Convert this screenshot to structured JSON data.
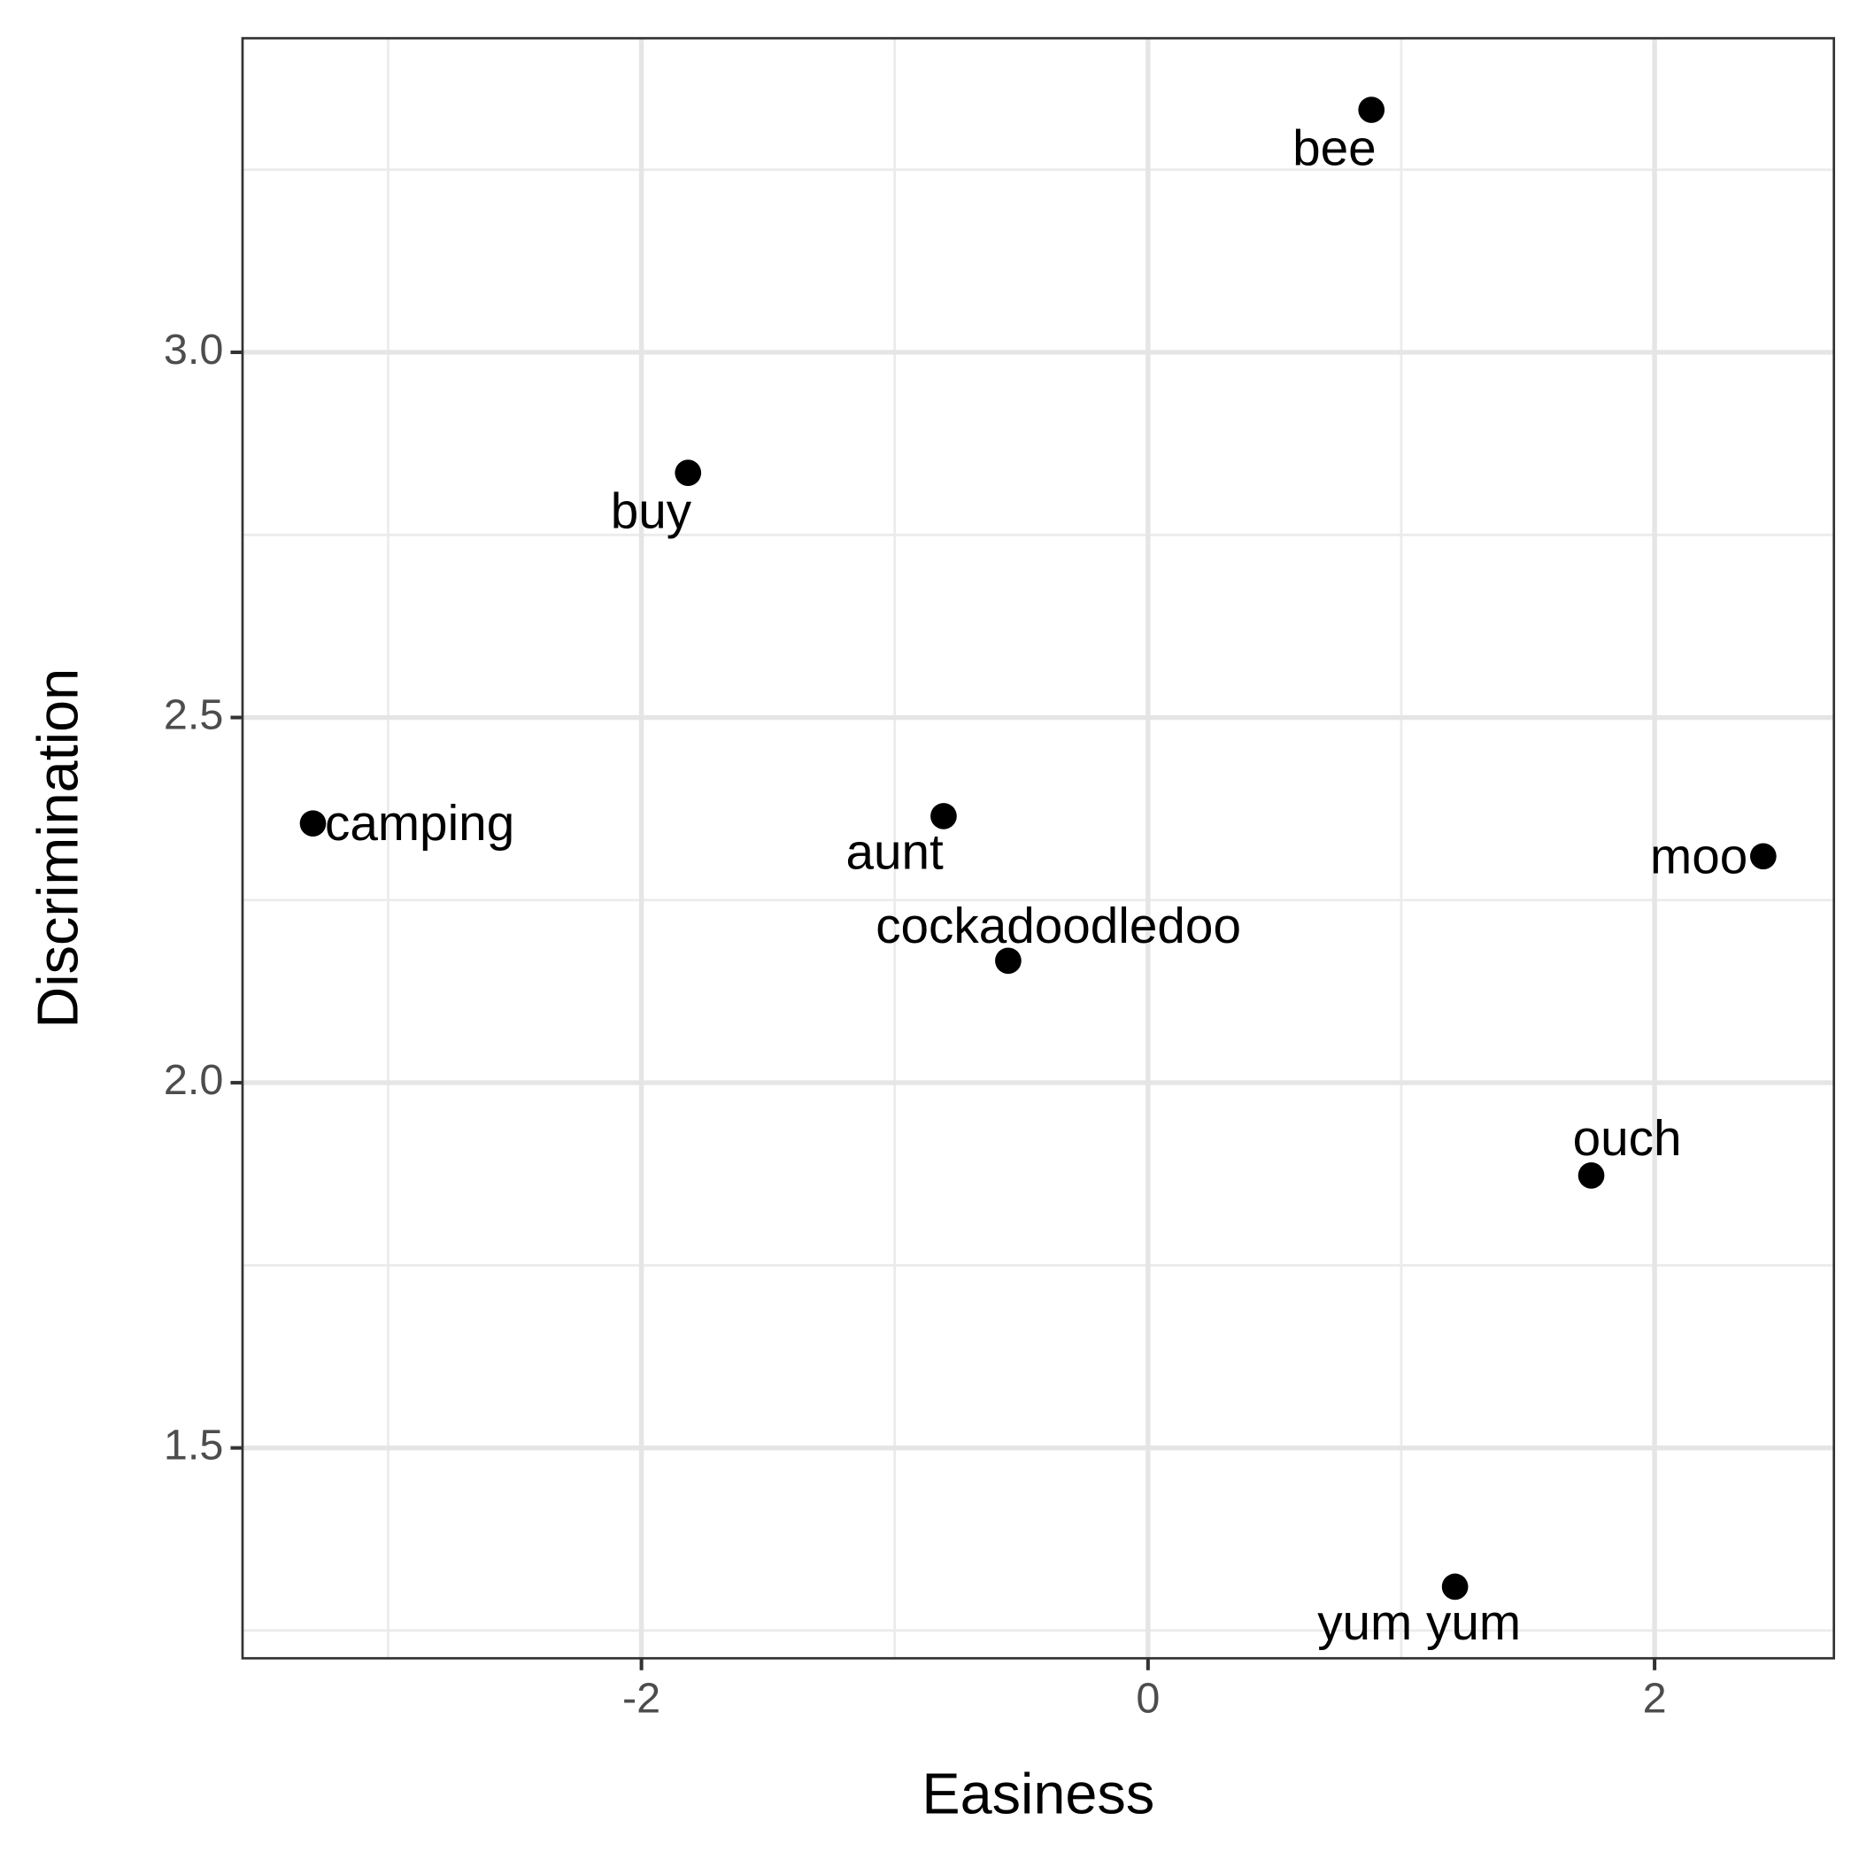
{
  "chart_data": {
    "type": "scatter",
    "x_label": "Easiness",
    "y_label": "Discrimination",
    "series": [
      {
        "labels": [
          "bee",
          "buy",
          "camping",
          "aunt",
          "cockadoodledoo",
          "moo",
          "ouch",
          "yum yum"
        ],
        "x": [
          0.882,
          -1.816,
          -3.297,
          -0.807,
          -0.552,
          2.429,
          1.75,
          1.212
        ],
        "values": [
          3.332,
          2.835,
          2.355,
          2.365,
          2.167,
          2.31,
          1.873,
          1.31
        ],
        "color": "#000000"
      }
    ],
    "xlim": [
      -3.575,
      2.708
    ],
    "ylim": [
      1.212,
      3.43
    ],
    "xticks": [
      -2,
      0,
      2
    ],
    "yticks": [
      {
        "value": 1.5,
        "label": "1.5"
      },
      {
        "value": 2,
        "label": "2.0"
      },
      {
        "value": 2.5,
        "label": "2.5"
      },
      {
        "value": 3,
        "label": "3.0"
      }
    ],
    "xminor": [
      -3,
      -1,
      1
    ],
    "yminor": [
      1.25,
      1.75,
      2.25,
      2.75,
      3.25
    ],
    "grid": true
  }
}
